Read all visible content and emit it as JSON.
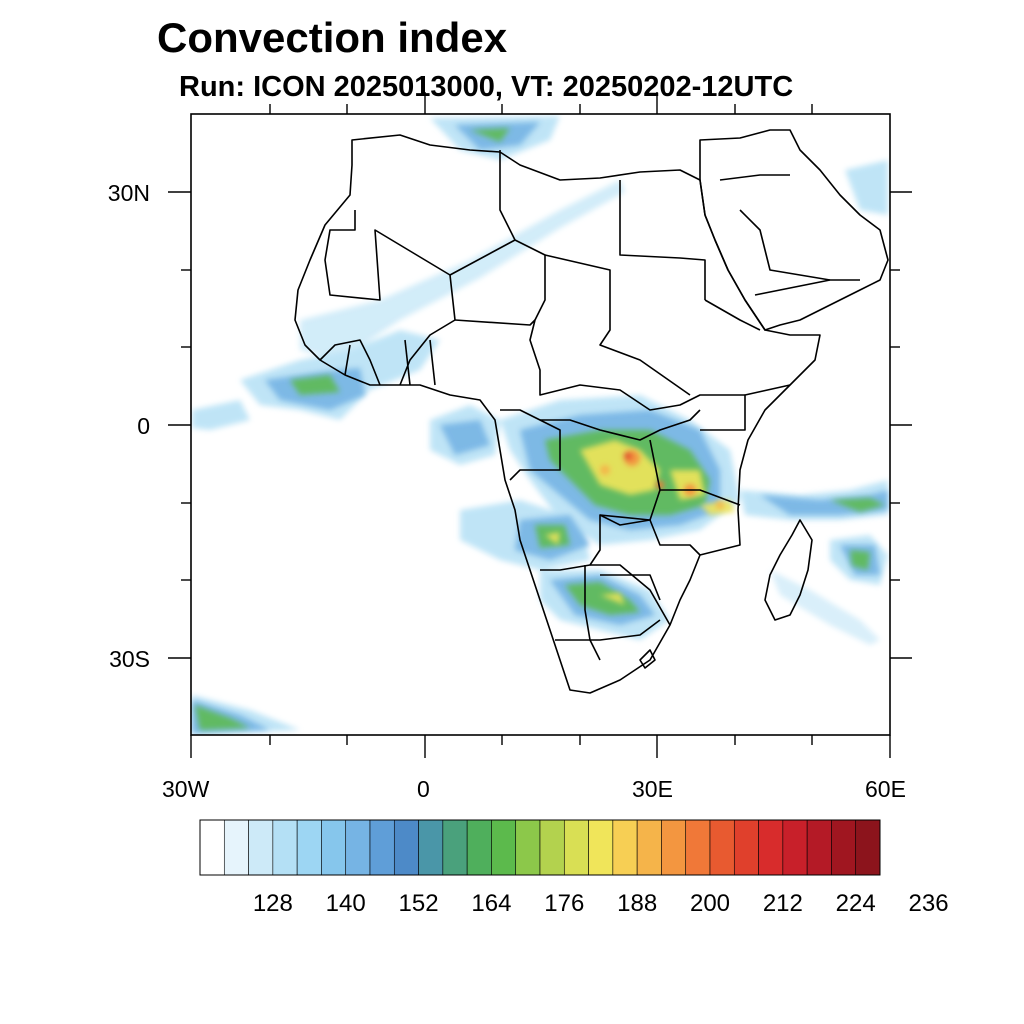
{
  "title": "Convection index",
  "subtitle": "Run: ICON 2025013000,  VT: 20250202-12UTC",
  "axes": {
    "lon_labels": [
      "30W",
      "0",
      "30E",
      "60E"
    ],
    "lat_labels": [
      "30N",
      "0",
      "30S"
    ],
    "lon_range": [
      -30,
      60
    ],
    "lat_range": [
      -40,
      40
    ]
  },
  "colorbar": {
    "labels": [
      "128",
      "140",
      "152",
      "164",
      "176",
      "188",
      "200",
      "212",
      "224",
      "236"
    ],
    "colors": [
      "#ffffff",
      "#e6f4fc",
      "#cdeaf8",
      "#b4e0f5",
      "#9dd6f3",
      "#86c6ec",
      "#76b4e4",
      "#5f9ed8",
      "#4d8ac8",
      "#4a96a8",
      "#4aa17c",
      "#4faf5c",
      "#5cba4c",
      "#8cc84a",
      "#b3d24e",
      "#d9df54",
      "#f0e55a",
      "#f7cf54",
      "#f5b44a",
      "#f39640",
      "#f07838",
      "#e85a30",
      "#e0402c",
      "#d82c2c",
      "#c8202a",
      "#b41a26",
      "#a01620",
      "#8c141c"
    ],
    "color_names": [
      "white",
      "lightest blue",
      "light blue",
      "sky blue",
      "blue",
      "teal",
      "green",
      "yellow-green",
      "yellow",
      "orange",
      "red",
      "dark red"
    ]
  },
  "map": {
    "projection": "cylindrical equidistant",
    "field": "Convection index",
    "hotspot_regions": [
      "Central Africa / Congo basin",
      "Tanzania",
      "Angola",
      "Botswana",
      "Gulf of Guinea",
      "Madagascar",
      "Mozambique Channel"
    ]
  }
}
